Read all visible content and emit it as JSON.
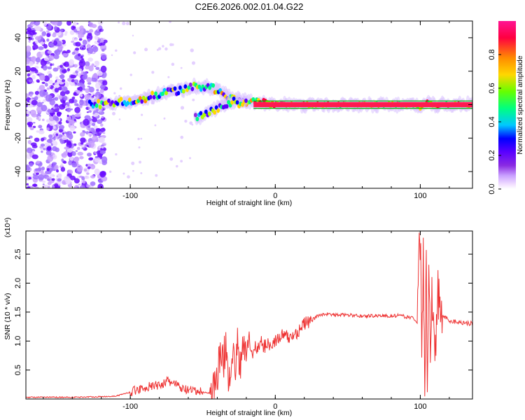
{
  "title": "C2E6.2026.002.01.04.G22",
  "colors": {
    "snr_line": "#ee3333",
    "colormap": [
      "#ffffff",
      "#f0dcff",
      "#c9a0ff",
      "#8a2be2",
      "#5a00ff",
      "#0000ff",
      "#00c8ff",
      "#00ff80",
      "#aaff00",
      "#ffd700",
      "#ff8c00",
      "#ff0040",
      "#ff1493"
    ]
  },
  "chart_data": [
    {
      "type": "heatmap",
      "name": "spectrogram",
      "xlabel": "Height of straight line (km)",
      "ylabel": "Frequency (Hz)",
      "xlim": [
        -172,
        136
      ],
      "ylim": [
        -50,
        50
      ],
      "xticks": [
        -100,
        0,
        100
      ],
      "xtick_labels": [
        "-100",
        "0",
        "100"
      ],
      "yticks": [
        -40,
        -20,
        0,
        20,
        40
      ],
      "ytick_labels": [
        "-40",
        "-20",
        "0",
        "20",
        "40"
      ],
      "colorbar": {
        "label": "Normalized spectral amplitude",
        "range": [
          0,
          1
        ],
        "ticks": [
          0.0,
          0.2,
          0.4,
          0.6,
          0.8
        ],
        "tick_labels": [
          "0.0",
          "0.2",
          "0.4",
          "0.6",
          "0.8"
        ]
      },
      "ridge_main": {
        "x": [
          -128,
          -110,
          -95,
          -85,
          -75,
          -65,
          -55,
          -45,
          -40,
          -30,
          -20,
          0,
          50,
          95,
          100,
          105,
          110,
          115,
          136
        ],
        "y": [
          0,
          1,
          3,
          5,
          7,
          9,
          11,
          10,
          9,
          4,
          2,
          0,
          0,
          0,
          -2,
          2,
          -1,
          0,
          0
        ]
      },
      "ridge_branch": {
        "x": [
          -55,
          -50,
          -45,
          -40,
          -35,
          -30,
          -25,
          -20
        ],
        "y": [
          -8,
          -6,
          -4,
          -2,
          0,
          2,
          1,
          2
        ]
      },
      "noise_region_x": [
        -172,
        -117
      ]
    },
    {
      "type": "line",
      "name": "snr",
      "title": "",
      "xlabel": "Height of straight line (km)",
      "ylabel": "SNR (10 * v/v)",
      "multiplier": "(x10⁴)",
      "xlim": [
        -172,
        136
      ],
      "ylim": [
        0,
        2.9
      ],
      "xticks": [
        -100,
        0,
        100
      ],
      "xtick_labels": [
        "-100",
        "0",
        "100"
      ],
      "yticks": [
        0.5,
        1.0,
        1.5,
        2.0,
        2.5
      ],
      "ytick_labels": [
        "0.5",
        "1.0",
        "1.5",
        "2.0",
        "2.5"
      ],
      "series": [
        {
          "name": "SNR",
          "x": [
            -172,
            -140,
            -120,
            -110,
            -100,
            -95,
            -90,
            -85,
            -80,
            -75,
            -70,
            -65,
            -60,
            -55,
            -50,
            -45,
            -42,
            -40,
            -38,
            -36,
            -34,
            -32,
            -30,
            -28,
            -26,
            -24,
            -22,
            -20,
            -18,
            -16,
            -14,
            -12,
            -10,
            -8,
            -5,
            0,
            5,
            10,
            15,
            20,
            25,
            30,
            35,
            40,
            50,
            60,
            70,
            80,
            85,
            90,
            95,
            98,
            100,
            101,
            102,
            103,
            104,
            105,
            106,
            107,
            108,
            110,
            112,
            115,
            120,
            125,
            130,
            136
          ],
          "y": [
            0.03,
            0.03,
            0.04,
            0.05,
            0.12,
            0.16,
            0.2,
            0.22,
            0.24,
            0.3,
            0.28,
            0.18,
            0.15,
            0.13,
            0.12,
            0.1,
            0.2,
            0.45,
            0.75,
            0.6,
            0.95,
            0.35,
            0.85,
            0.5,
            0.9,
            0.6,
            0.8,
            0.85,
            1.05,
            0.7,
            0.95,
            0.85,
            1.0,
            0.9,
            0.95,
            1.0,
            1.1,
            1.05,
            1.15,
            1.3,
            1.35,
            1.45,
            1.47,
            1.45,
            1.45,
            1.43,
            1.44,
            1.43,
            1.44,
            1.42,
            1.4,
            1.3,
            2.9,
            0.5,
            2.4,
            0.1,
            2.5,
            0.4,
            2.2,
            0.8,
            1.9,
            1.0,
            1.7,
            1.45,
            1.35,
            1.33,
            1.32,
            1.3
          ]
        }
      ]
    }
  ]
}
